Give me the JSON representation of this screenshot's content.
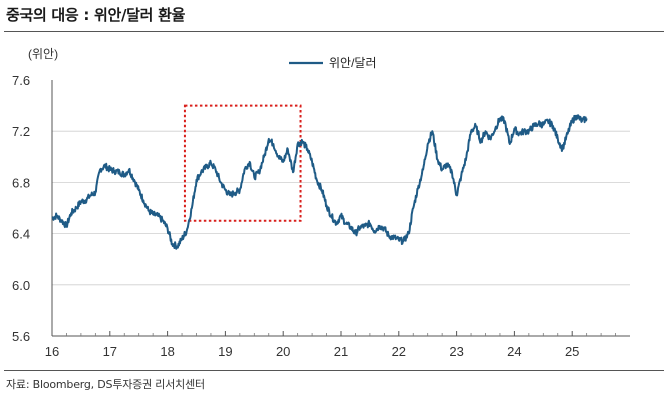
{
  "title": "중국의 대응 : 위안/달러 환율",
  "source": "자료: Bloomberg, DS투자증권 리서치센터",
  "chart_data": {
    "type": "line",
    "unit_label": "(위안)",
    "ylim": [
      5.6,
      7.6
    ],
    "yticks": [
      "7.6",
      "7.2",
      "6.8",
      "6.4",
      "6.0",
      "5.6"
    ],
    "ytick_values": [
      7.6,
      7.2,
      6.8,
      6.4,
      6.0,
      5.6
    ],
    "xlim": [
      16,
      26
    ],
    "xticks": [
      "16",
      "17",
      "18",
      "19",
      "20",
      "21",
      "22",
      "23",
      "24",
      "25"
    ],
    "xtick_values": [
      16,
      17,
      18,
      19,
      20,
      21,
      22,
      23,
      24,
      25
    ],
    "legend_position": "top-center",
    "line_color": "#1f5b86",
    "highlight_color": "#d9201c",
    "highlight_range": {
      "x": [
        18.3,
        20.3
      ],
      "y": [
        6.5,
        7.4
      ]
    },
    "series": [
      {
        "name": "위안/달러",
        "x": [
          16.0,
          16.08,
          16.17,
          16.25,
          16.33,
          16.42,
          16.5,
          16.58,
          16.67,
          16.75,
          16.83,
          16.92,
          17.0,
          17.08,
          17.17,
          17.25,
          17.33,
          17.42,
          17.5,
          17.58,
          17.67,
          17.75,
          17.83,
          17.92,
          18.0,
          18.08,
          18.17,
          18.25,
          18.33,
          18.42,
          18.5,
          18.58,
          18.67,
          18.75,
          18.83,
          18.92,
          19.0,
          19.08,
          19.17,
          19.25,
          19.33,
          19.42,
          19.5,
          19.58,
          19.67,
          19.75,
          19.83,
          19.92,
          20.0,
          20.08,
          20.17,
          20.25,
          20.33,
          20.42,
          20.5,
          20.58,
          20.67,
          20.75,
          20.83,
          20.92,
          21.0,
          21.08,
          21.17,
          21.25,
          21.33,
          21.42,
          21.5,
          21.58,
          21.67,
          21.75,
          21.83,
          21.92,
          22.0,
          22.08,
          22.17,
          22.25,
          22.33,
          22.42,
          22.5,
          22.58,
          22.67,
          22.75,
          22.83,
          22.92,
          23.0,
          23.08,
          23.17,
          23.25,
          23.33,
          23.42,
          23.5,
          23.58,
          23.67,
          23.75,
          23.83,
          23.92,
          24.0,
          24.08,
          24.17,
          24.25,
          24.33,
          24.42,
          24.5,
          24.58,
          24.67,
          24.75,
          24.83,
          24.92,
          25.0,
          25.08,
          25.17,
          25.25
        ],
        "values": [
          6.52,
          6.54,
          6.5,
          6.46,
          6.56,
          6.6,
          6.65,
          6.66,
          6.7,
          6.72,
          6.9,
          6.93,
          6.9,
          6.89,
          6.88,
          6.86,
          6.9,
          6.82,
          6.74,
          6.66,
          6.58,
          6.55,
          6.54,
          6.5,
          6.44,
          6.32,
          6.3,
          6.36,
          6.42,
          6.6,
          6.82,
          6.88,
          6.92,
          6.95,
          6.9,
          6.8,
          6.74,
          6.7,
          6.72,
          6.74,
          6.9,
          6.96,
          6.84,
          6.88,
          7.0,
          7.14,
          7.1,
          7.0,
          6.96,
          7.06,
          6.88,
          7.1,
          7.12,
          7.06,
          6.96,
          6.82,
          6.74,
          6.62,
          6.54,
          6.48,
          6.54,
          6.48,
          6.45,
          6.4,
          6.45,
          6.46,
          6.48,
          6.42,
          6.46,
          6.44,
          6.38,
          6.37,
          6.35,
          6.34,
          6.4,
          6.6,
          6.75,
          6.9,
          7.1,
          7.2,
          6.98,
          6.9,
          6.94,
          6.88,
          6.7,
          6.85,
          7.0,
          7.2,
          7.24,
          7.12,
          7.2,
          7.14,
          7.22,
          7.3,
          7.28,
          7.1,
          7.22,
          7.18,
          7.2,
          7.2,
          7.24,
          7.26,
          7.25,
          7.28,
          7.24,
          7.14,
          7.06,
          7.18,
          7.28,
          7.32,
          7.28,
          7.3
        ]
      }
    ]
  }
}
